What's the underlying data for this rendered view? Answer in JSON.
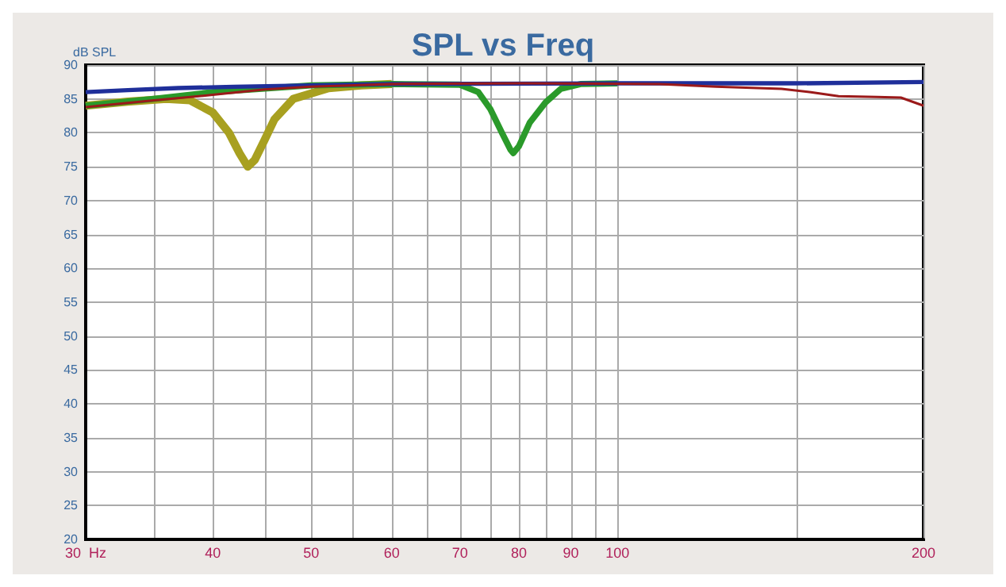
{
  "chart_data": {
    "type": "line",
    "title": "SPL vs Freq",
    "ylabel": "dB SPL",
    "log": "x",
    "grid": true,
    "marker": "none",
    "line_style": "solid",
    "xlim": [
      30,
      200
    ],
    "xticks": [
      {
        "value": 30,
        "label": "30  Hz"
      },
      {
        "value": 35,
        "label": null
      },
      40,
      {
        "value": 45,
        "label": null
      },
      50,
      {
        "value": 55,
        "label": null
      },
      60,
      {
        "value": 65,
        "label": null
      },
      70,
      {
        "value": 75,
        "label": null
      },
      80,
      {
        "value": 85,
        "label": null
      },
      90,
      {
        "value": 95,
        "label": null
      },
      100,
      {
        "value": 150,
        "label": null
      },
      200
    ],
    "ylim": [
      20,
      90
    ],
    "yticks": [
      20,
      25,
      30,
      35,
      40,
      45,
      50,
      55,
      60,
      65,
      70,
      75,
      80,
      85,
      90
    ],
    "series": [
      {
        "color": "#a8a020",
        "x": [
          30,
          33,
          36,
          38,
          40,
          41.5,
          42.5,
          43.3,
          44,
          45,
          46,
          48,
          52,
          56,
          60
        ],
        "values": [
          84,
          84.6,
          85,
          84.8,
          83,
          80,
          77,
          75,
          76,
          79,
          82,
          85,
          86.6,
          87,
          87.2
        ]
      },
      {
        "color": "#2a9a2a",
        "x": [
          30,
          35,
          40,
          50,
          60,
          70,
          73,
          75,
          77,
          78.5,
          79,
          80,
          82,
          85,
          88,
          92,
          100
        ],
        "values": [
          84,
          85,
          86,
          87,
          87.2,
          87.1,
          86,
          83.5,
          80,
          77.5,
          77,
          78,
          81.5,
          84.5,
          86.5,
          87.2,
          87.3
        ]
      },
      {
        "color": "#1f2f9a",
        "x": [
          30,
          33,
          37,
          42,
          50,
          60,
          100,
          150,
          200
        ],
        "values": [
          86,
          86.3,
          86.6,
          86.8,
          87,
          87.2,
          87.3,
          87.3,
          87.5
        ]
      },
      {
        "color": "#9b1a1a",
        "x": [
          30,
          35,
          40,
          45,
          50,
          60,
          80,
          110,
          125,
          145,
          155,
          165,
          180,
          190,
          200
        ],
        "values": [
          83.8,
          84.8,
          85.6,
          86.4,
          86.8,
          87.2,
          87.3,
          87.2,
          86.8,
          86.5,
          86,
          85.4,
          85.3,
          85.2,
          84
        ]
      }
    ]
  }
}
